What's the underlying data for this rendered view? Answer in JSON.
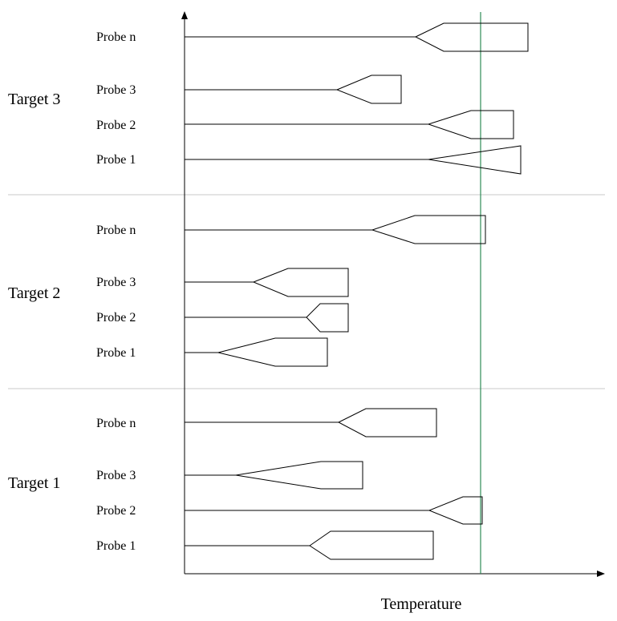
{
  "axis": {
    "x_label": "Temperature"
  },
  "colors": {
    "threshold": "#2e8b57",
    "separator": "#c8c8c8",
    "ink": "#000000"
  },
  "groups": [
    {
      "label": "Target 3",
      "probes": [
        "Probe n",
        "Probe 3",
        "Probe 2",
        "Probe 1"
      ]
    },
    {
      "label": "Target 2",
      "probes": [
        "Probe n",
        "Probe 3",
        "Probe 2",
        "Probe 1"
      ]
    },
    {
      "label": "Target 1",
      "probes": [
        "Probe n",
        "Probe 3",
        "Probe 2",
        "Probe 1"
      ]
    }
  ]
}
